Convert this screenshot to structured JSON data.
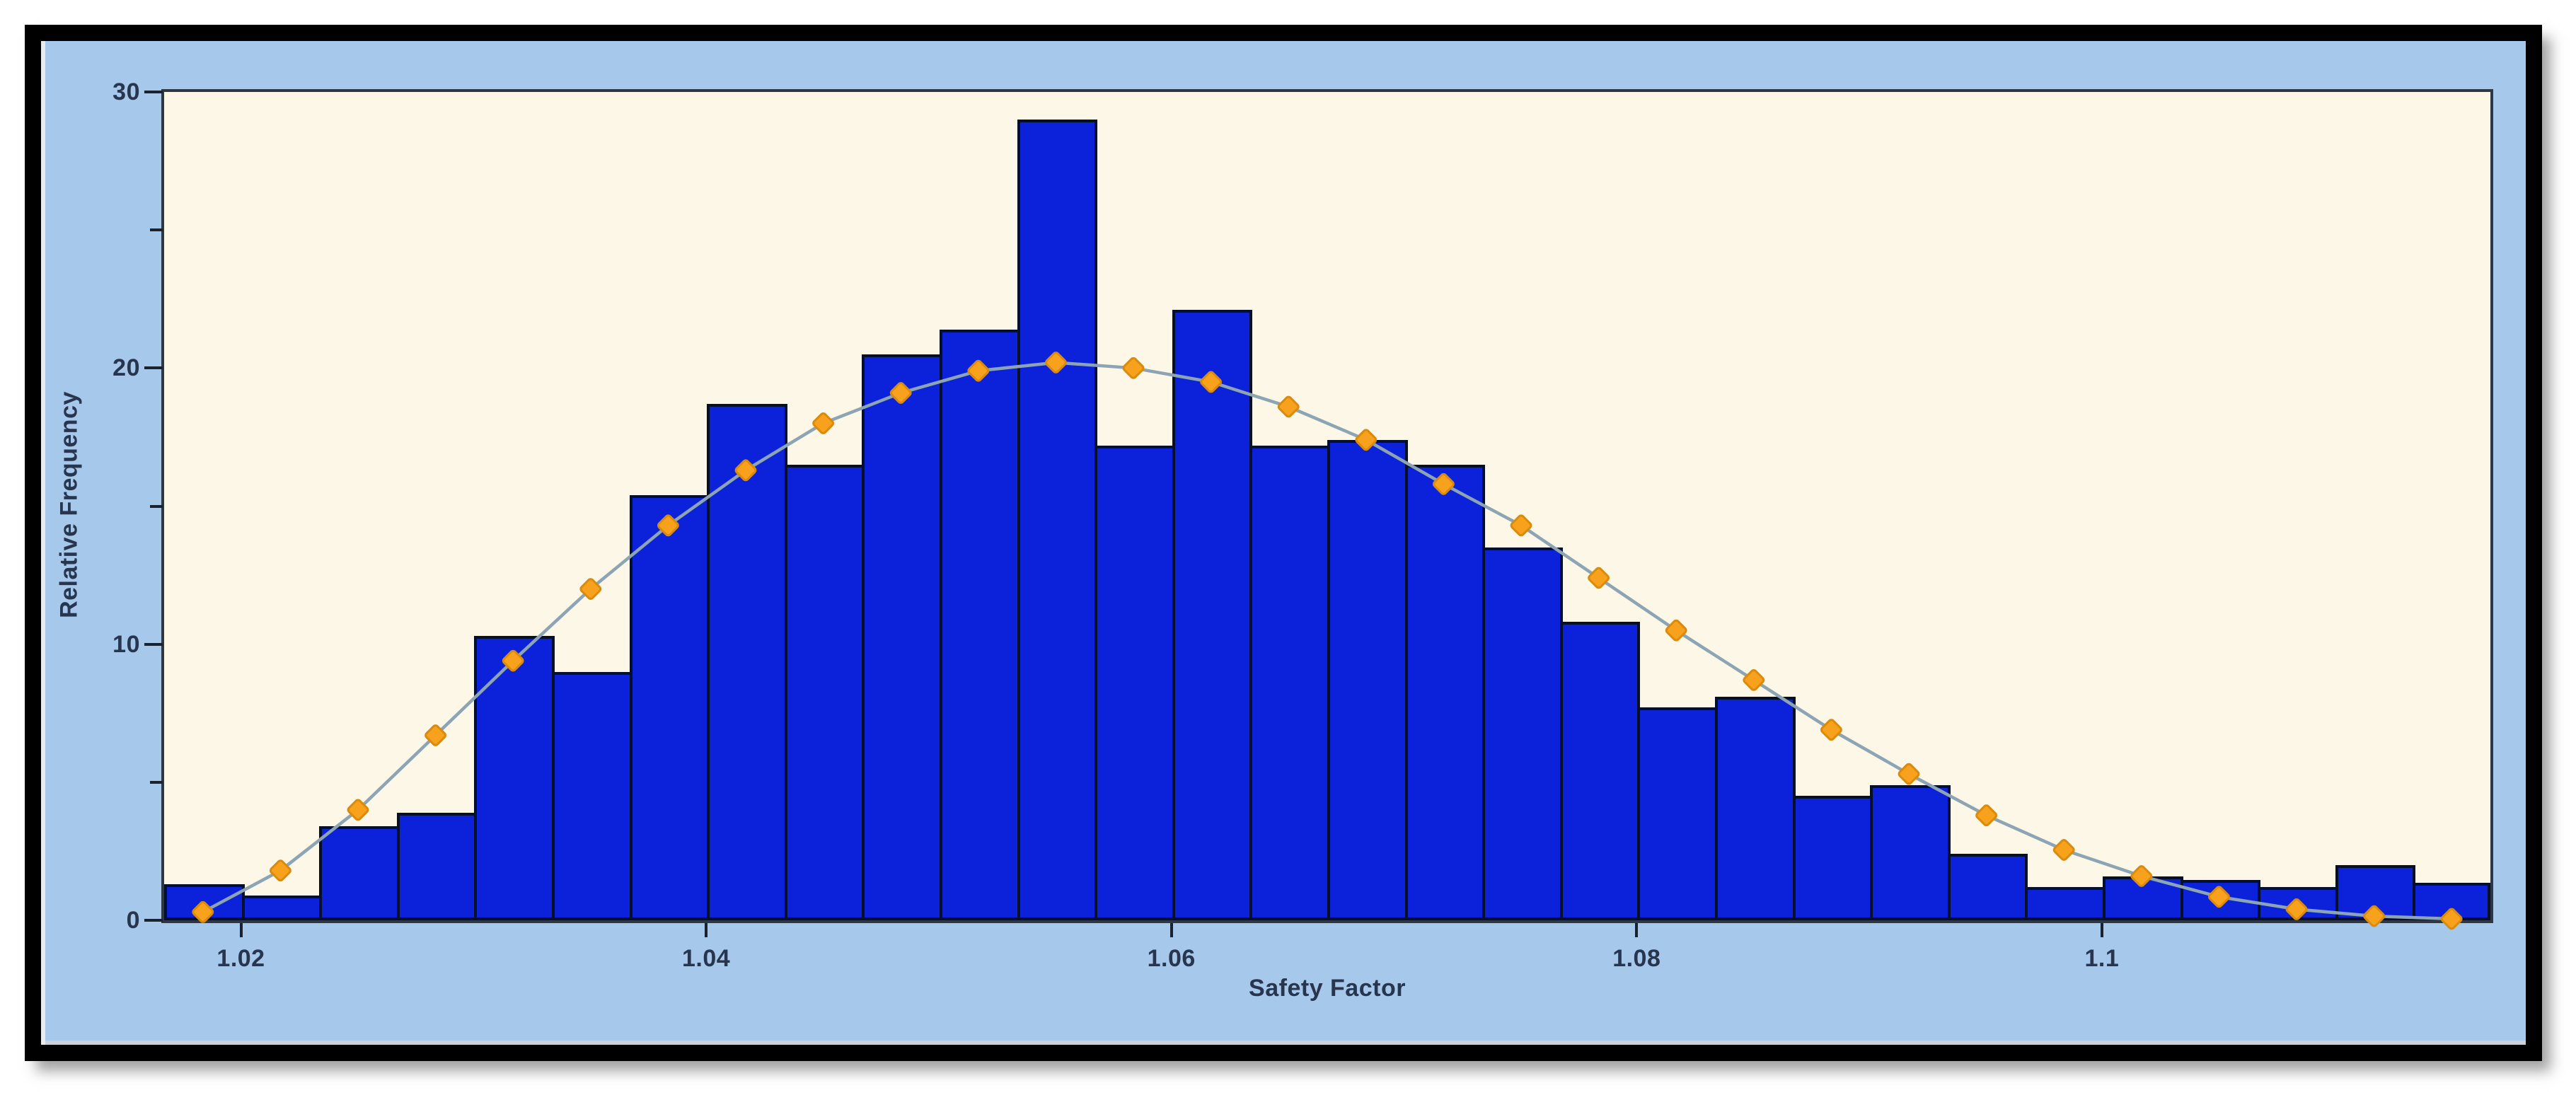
{
  "chart_data": {
    "type": "bar",
    "subtype": "histogram-with-fitted-distribution-curve",
    "title": "",
    "xlabel": "Safety Factor",
    "ylabel": "Relative Frequency",
    "xlim": [
      1.0167,
      1.1167
    ],
    "ylim": [
      0,
      30
    ],
    "grid": "off",
    "legend": "none",
    "bin_width": 0.00333,
    "x_ticks": [
      1.02,
      1.04,
      1.06,
      1.08,
      1.1
    ],
    "x_tick_labels": [
      "1.02",
      "1.04",
      "1.06",
      "1.08",
      "1.1"
    ],
    "y_major_ticks": [
      0,
      10,
      20,
      30
    ],
    "y_major_tick_labels": [
      "0",
      "10",
      "20",
      "30"
    ],
    "y_minor_ticks": [
      5,
      15,
      25
    ],
    "bin_centers": [
      1.0183,
      1.0217,
      1.025,
      1.0283,
      1.0317,
      1.035,
      1.0383,
      1.0417,
      1.045,
      1.0483,
      1.0517,
      1.055,
      1.0583,
      1.0617,
      1.065,
      1.0683,
      1.0717,
      1.075,
      1.0783,
      1.0817,
      1.085,
      1.0883,
      1.0917,
      1.095,
      1.0983,
      1.1017,
      1.105,
      1.1083,
      1.1117,
      1.115
    ],
    "series": [
      {
        "name": "relative-frequency-histogram",
        "type": "bar",
        "values": [
          1.3,
          0.9,
          3.4,
          3.9,
          10.3,
          9.0,
          15.4,
          18.7,
          16.5,
          20.5,
          21.4,
          29.0,
          17.2,
          22.1,
          17.2,
          17.4,
          16.5,
          13.5,
          10.8,
          7.7,
          8.1,
          4.5,
          4.9,
          2.4,
          1.2,
          1.6,
          1.45,
          1.2,
          2.0,
          1.35
        ]
      },
      {
        "name": "fitted-normal-distribution-curve",
        "type": "line-with-diamond-markers",
        "values": [
          0.3,
          1.8,
          4.0,
          6.7,
          9.4,
          12.0,
          14.3,
          16.3,
          18.0,
          19.1,
          19.9,
          20.2,
          20.0,
          19.5,
          18.6,
          17.4,
          15.8,
          14.3,
          12.4,
          10.5,
          8.7,
          6.9,
          5.3,
          3.8,
          2.55,
          1.6,
          0.85,
          0.4,
          0.15,
          0.05
        ]
      }
    ]
  },
  "colors": {
    "page_background": "#FFFFFF",
    "frame_border": "#000000",
    "margin_background": "#A6C8EB",
    "plot_background": "#FCF7E7",
    "plot_border": "#2E3844",
    "bar_fill": "#0C21DA",
    "bar_border": "#04102A",
    "curve_line": "#8CA4B4",
    "marker_fill": "#F7A11D",
    "marker_border": "#DA8B0C",
    "tick_color": "#1A2230",
    "text_color": "#28354E"
  }
}
